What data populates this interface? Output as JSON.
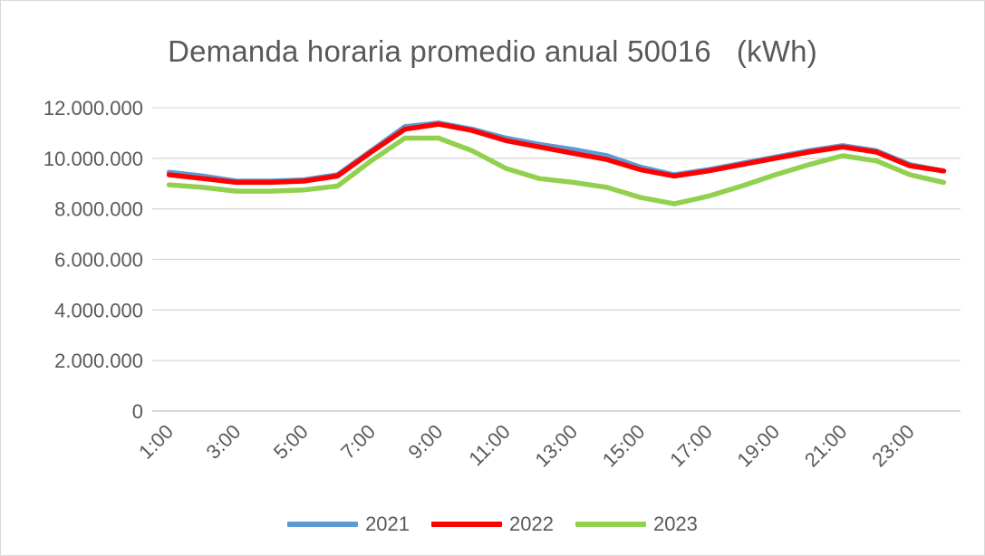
{
  "chart_data": {
    "type": "line",
    "title": "Demanda horaria promedio anual 50016   (kWh)",
    "x": [
      "1:00",
      "2:00",
      "3:00",
      "4:00",
      "5:00",
      "6:00",
      "7:00",
      "8:00",
      "9:00",
      "10:00",
      "11:00",
      "12:00",
      "13:00",
      "14:00",
      "15:00",
      "16:00",
      "17:00",
      "18:00",
      "19:00",
      "20:00",
      "21:00",
      "22:00",
      "23:00",
      "24:00"
    ],
    "x_tick_labels": [
      "1:00",
      "3:00",
      "5:00",
      "7:00",
      "9:00",
      "11:00",
      "13:00",
      "15:00",
      "17:00",
      "19:00",
      "21:00",
      "23:00"
    ],
    "ylim": [
      0,
      12000000
    ],
    "y_tick_labels": [
      "0",
      "2.000.000",
      "4.000.000",
      "6.000.000",
      "8.000.000",
      "10.000.000",
      "12.000.000"
    ],
    "grid": true,
    "legend_position": "bottom",
    "series": [
      {
        "name": "2021",
        "color": "#5b9bd5",
        "values": [
          9450000,
          9300000,
          9100000,
          9100000,
          9150000,
          9350000,
          10300000,
          11250000,
          11400000,
          11150000,
          10800000,
          10550000,
          10350000,
          10100000,
          9650000,
          9350000,
          9550000,
          9800000,
          10050000,
          10300000,
          10500000,
          10300000,
          9750000,
          9500000
        ]
      },
      {
        "name": "2022",
        "color": "#ff0000",
        "values": [
          9350000,
          9200000,
          9050000,
          9050000,
          9100000,
          9300000,
          10250000,
          11150000,
          11350000,
          11100000,
          10700000,
          10450000,
          10200000,
          9950000,
          9550000,
          9300000,
          9500000,
          9750000,
          10000000,
          10250000,
          10450000,
          10250000,
          9700000,
          9500000
        ]
      },
      {
        "name": "2023",
        "color": "#92d050",
        "values": [
          8950000,
          8850000,
          8700000,
          8700000,
          8750000,
          8900000,
          9900000,
          10800000,
          10800000,
          10300000,
          9600000,
          9200000,
          9050000,
          8850000,
          8450000,
          8200000,
          8500000,
          8900000,
          9350000,
          9750000,
          10100000,
          9900000,
          9350000,
          9050000
        ]
      }
    ]
  }
}
